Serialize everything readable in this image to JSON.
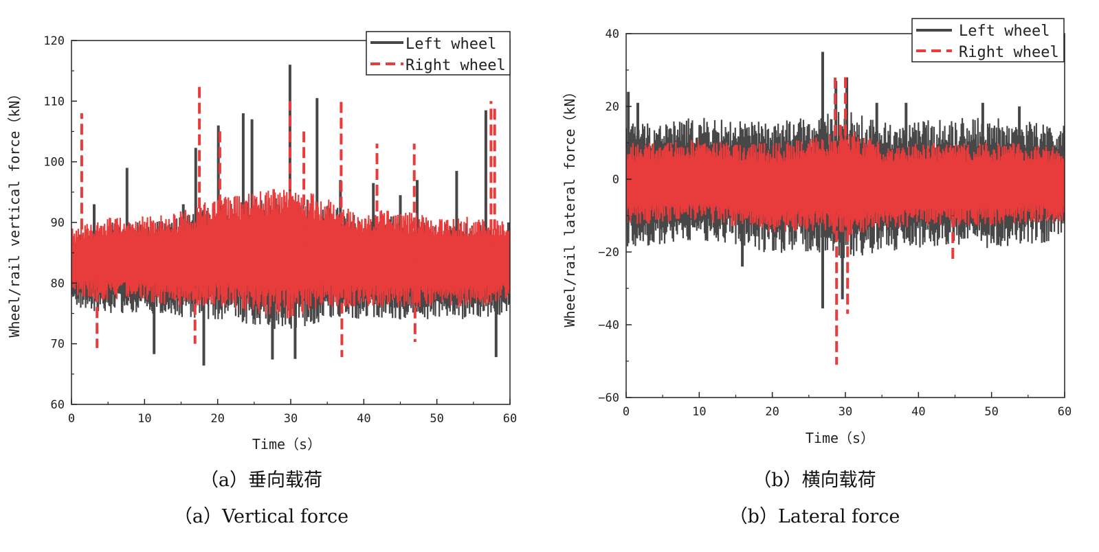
{
  "figure": {
    "captions": [
      {
        "zh": "（a）垂向载荷",
        "en": "（a）Vertical force"
      },
      {
        "zh": "（b）横向载荷",
        "en": "（b）Lateral force"
      }
    ]
  },
  "chart_data": [
    {
      "type": "line",
      "title": "",
      "xlabel": "Time（s）",
      "ylabel": "Wheel/rail vertical force（kN）",
      "xlim": [
        0,
        60
      ],
      "ylim": [
        60,
        120
      ],
      "xticks": [
        0,
        10,
        20,
        30,
        40,
        50,
        60
      ],
      "yticks": [
        60,
        70,
        80,
        90,
        100,
        110,
        120
      ],
      "legend_position": "top-right",
      "grid": false,
      "series": [
        {
          "name": "Left wheel",
          "color": "#474747",
          "style": "solid",
          "envelope": {
            "x": [
              0,
              5,
              10,
              15,
              20,
              25,
              30,
              35,
              40,
              45,
              50,
              55,
              60
            ],
            "upper": [
              88,
              90,
              90,
              91,
              93,
              94,
              95,
              93,
              91,
              91,
              90,
              90,
              89
            ],
            "lower": [
              76,
              75,
              75,
              74,
              74,
              73,
              72,
              74,
              74,
              74,
              74,
              74,
              75
            ]
          },
          "peaks": [
            [
              1.5,
              85
            ],
            [
              3.1,
              93
            ],
            [
              7.6,
              99
            ],
            [
              11.3,
              68.3
            ],
            [
              15.3,
              93
            ],
            [
              17.0,
              102.3
            ],
            [
              18.1,
              66.4
            ],
            [
              20.1,
              106
            ],
            [
              23.5,
              108
            ],
            [
              24.7,
              107
            ],
            [
              27.5,
              67.4
            ],
            [
              29.9,
              116
            ],
            [
              30.6,
              67.5
            ],
            [
              33.6,
              110.5
            ],
            [
              36.8,
              97
            ],
            [
              41.3,
              96.5
            ],
            [
              45.0,
              94.5
            ],
            [
              47.3,
              97
            ],
            [
              52.7,
              98.5
            ],
            [
              56.7,
              108.5
            ],
            [
              58.1,
              67.8
            ],
            [
              59.8,
              90
            ]
          ]
        },
        {
          "name": "Right wheel",
          "color": "#e83b3b",
          "style": "dashed",
          "envelope": {
            "x": [
              0,
              5,
              10,
              15,
              20,
              25,
              30,
              35,
              40,
              45,
              50,
              55,
              60
            ],
            "upper": [
              89,
              91,
              91,
              92,
              94,
              95,
              96,
              94,
              92,
              92,
              91,
              91,
              90
            ],
            "lower": [
              78,
              77,
              77,
              76,
              76,
              75,
              74,
              76,
              76,
              76,
              76,
              76,
              77
            ]
          },
          "peaks": [
            [
              1.4,
              108
            ],
            [
              3.5,
              69.3
            ],
            [
              17.5,
              113
            ],
            [
              16.9,
              70
            ],
            [
              20.3,
              105.5
            ],
            [
              29.9,
              110
            ],
            [
              31.8,
              105
            ],
            [
              36.9,
              110
            ],
            [
              37.0,
              67.8
            ],
            [
              41.8,
              103
            ],
            [
              46.9,
              103
            ],
            [
              47.0,
              70.3
            ],
            [
              57.4,
              110
            ],
            [
              57.9,
              109
            ]
          ]
        }
      ]
    },
    {
      "type": "line",
      "title": "",
      "xlabel": "Time（s）",
      "ylabel": "Wheel/rail lateral force（kN）",
      "xlim": [
        0,
        60
      ],
      "ylim": [
        -60,
        40
      ],
      "xticks": [
        0,
        10,
        20,
        30,
        40,
        50,
        60
      ],
      "yticks": [
        -60,
        -40,
        -20,
        0,
        20,
        40
      ],
      "legend_position": "top-right",
      "grid": false,
      "series": [
        {
          "name": "Left wheel",
          "color": "#474747",
          "style": "solid",
          "envelope": {
            "x": [
              0,
              5,
              10,
              15,
              20,
              25,
              30,
              35,
              40,
              45,
              50,
              55,
              60
            ],
            "upper": [
              16,
              16,
              17,
              16,
              16,
              17,
              19,
              16,
              16,
              17,
              17,
              16,
              15
            ],
            "lower": [
              -19,
              -18,
              -17,
              -18,
              -21,
              -20,
              -22,
              -20,
              -19,
              -19,
              -19,
              -18,
              -17
            ]
          },
          "peaks": [
            [
              0.3,
              24
            ],
            [
              1.6,
              21
            ],
            [
              15.9,
              -24
            ],
            [
              26.9,
              35
            ],
            [
              26.9,
              -35.5
            ],
            [
              28.7,
              27
            ],
            [
              29.6,
              -33
            ],
            [
              30.2,
              28
            ],
            [
              34.3,
              21
            ],
            [
              38.3,
              21
            ],
            [
              48.8,
              21
            ],
            [
              53.8,
              20
            ]
          ]
        },
        {
          "name": "Right wheel",
          "color": "#e83b3b",
          "style": "dashed",
          "envelope": {
            "x": [
              0,
              5,
              10,
              15,
              20,
              25,
              30,
              35,
              40,
              45,
              50,
              55,
              60
            ],
            "upper": [
              10,
              10,
              11,
              10,
              10,
              11,
              14,
              10,
              10,
              10,
              10,
              10,
              9
            ],
            "lower": [
              -13,
              -12,
              -12,
              -13,
              -15,
              -14,
              -16,
              -14,
              -13,
              -13,
              -13,
              -12,
              -12
            ]
          },
          "peaks": [
            [
              28.6,
              29
            ],
            [
              28.8,
              -51
            ],
            [
              29.3,
              15
            ],
            [
              30.0,
              28
            ],
            [
              30.3,
              -37
            ],
            [
              44.7,
              -23
            ]
          ]
        }
      ]
    }
  ]
}
